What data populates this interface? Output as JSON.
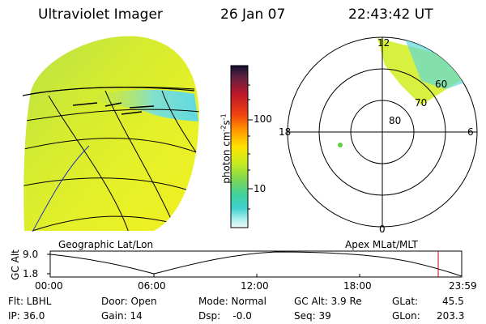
{
  "header": {
    "instrument": "Ultraviolet Imager",
    "date": "26 Jan 07",
    "time": "22:43:42 UT"
  },
  "colorbar": {
    "unit_label": "photon cm",
    "unit_exp1": "-2",
    "unit_mid": "s",
    "unit_exp2": "-1",
    "tick_100": "100",
    "tick_10": "10",
    "colors": [
      "#101030",
      "#600030",
      "#b00020",
      "#e02010",
      "#ff6000",
      "#ffa000",
      "#ffe000",
      "#d8f000",
      "#a8e040",
      "#60d070",
      "#30d0c0",
      "#80e8e8",
      "#d0f4f4",
      "#f4f8f8"
    ]
  },
  "polar": {
    "label_top": "12",
    "label_bottom": "0",
    "label_left": "18",
    "label_right": "6",
    "ring_80": "80",
    "ring_70": "70",
    "ring_60": "60"
  },
  "timeline": {
    "left_title": "Geographic Lat/Lon",
    "right_title": "Apex MLat/MLT",
    "axis_label": "GC Alt",
    "y_top": "9.0",
    "y_bottom": "1.8",
    "ticks": [
      "00:00",
      "06:00",
      "12:00",
      "18:00",
      "23:59"
    ],
    "marker_color": "#cc0000"
  },
  "info": {
    "row1": {
      "filter": "Flt: LBHL",
      "door": "Door: Open",
      "mode": "Mode: Normal",
      "gc_alt": "GC Alt: 3.9 Re",
      "glat_label": "GLat:",
      "glat_value": "45.5"
    },
    "row2": {
      "ip": "IP: 36.0",
      "gain": "Gain: 14",
      "dsp": "Dsp:    -0.0",
      "seq": "Seq: 39",
      "glon_label": "GLon:",
      "glon_value": "203.3"
    }
  }
}
